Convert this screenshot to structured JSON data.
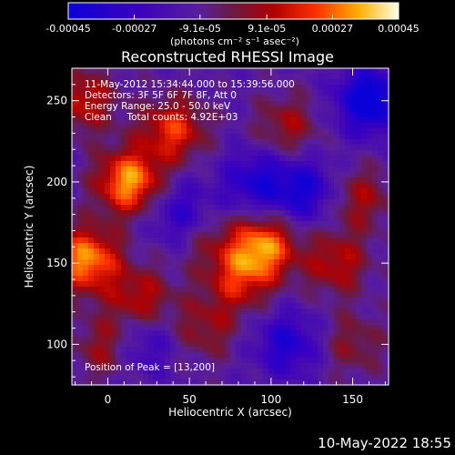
{
  "chart_data": {
    "type": "heatmap",
    "title": "Reconstructed RHESSI Image",
    "xlabel": "Heliocentric X (arcsec)",
    "ylabel": "Heliocentric Y (arcsec)",
    "xlim": [
      -22,
      172
    ],
    "ylim": [
      75,
      270
    ],
    "xticks": [
      0,
      50,
      100,
      150
    ],
    "yticks": [
      100,
      150,
      200,
      250
    ],
    "colorbar": {
      "min": -0.00045,
      "max": 0.00045,
      "tick_values": [
        -0.00045,
        -0.00027,
        -9.1e-05,
        9.1e-05,
        0.00027,
        0.00045
      ],
      "tick_labels": [
        "-0.00045",
        "-0.00027",
        "-9.1e-05",
        "9.1e-05",
        "0.00027",
        "0.00045"
      ],
      "unit_label": "(photons cm⁻² s⁻¹ asec⁻²)"
    },
    "annotations": [
      "11-May-2012 15:34:44.000 to 15:39:56.000",
      "Detectors: 3F 5F 6F 7F 8F, Att 0",
      "Energy Range: 25.0 - 50.0 keV",
      "Clean     Total counts: 4.92E+03"
    ],
    "peak_label": "Position of Peak = [13,200]",
    "peak_position": [
      13,
      200
    ],
    "sources": [
      {
        "x": 13,
        "y": 200,
        "flux": 0.00045
      },
      {
        "x": -13,
        "y": 152,
        "flux": 0.00044
      },
      {
        "x": 95,
        "y": 160,
        "flux": 0.00042
      },
      {
        "x": 40,
        "y": 232,
        "flux": 0.00032
      },
      {
        "x": 110,
        "y": 234,
        "flux": 0.0002
      },
      {
        "x": 80,
        "y": 140,
        "flux": 0.00026
      },
      {
        "x": 140,
        "y": 150,
        "flux": 0.00024
      },
      {
        "x": 155,
        "y": 190,
        "flux": 0.0002
      },
      {
        "x": 150,
        "y": 100,
        "flux": 0.00016
      },
      {
        "x": 20,
        "y": 128,
        "flux": 0.00024
      },
      {
        "x": 60,
        "y": 110,
        "flux": 0.00018
      },
      {
        "x": 0,
        "y": 98,
        "flux": 0.00022
      },
      {
        "x": -15,
        "y": 250,
        "flux": 0.00026
      },
      {
        "x": 60,
        "y": 165,
        "flux": 0.00014
      },
      {
        "x": 90,
        "y": 200,
        "flux": -0.00025
      },
      {
        "x": 120,
        "y": 195,
        "flux": -0.00028
      },
      {
        "x": 160,
        "y": 250,
        "flux": -0.0004
      },
      {
        "x": 45,
        "y": 180,
        "flux": -0.00022
      },
      {
        "x": 110,
        "y": 100,
        "flux": -0.00025
      },
      {
        "x": 20,
        "y": 100,
        "flux": -0.0002
      }
    ]
  },
  "footer_date": "10-May-2022 18:55"
}
